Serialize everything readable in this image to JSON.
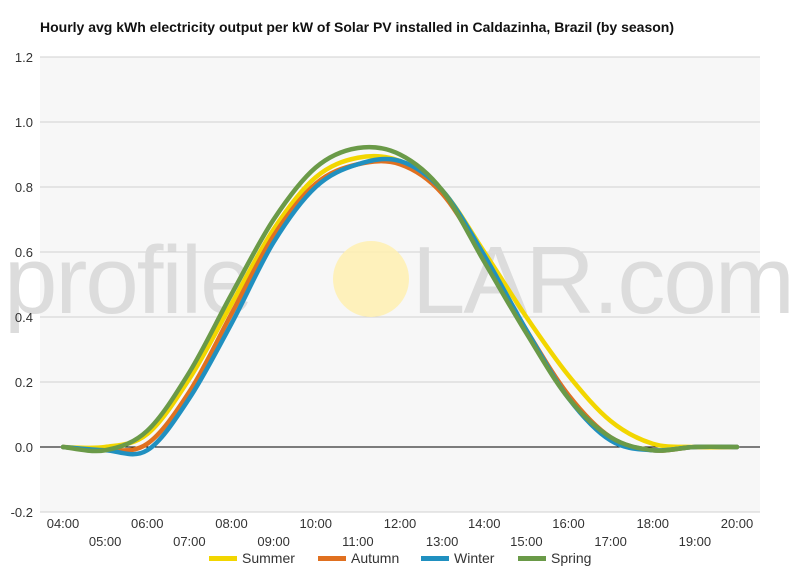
{
  "chart_data": {
    "type": "line",
    "title": "Hourly avg kWh electricity output per kW of Solar PV installed in Caldazinha, Brazil (by season)",
    "xlabel": "",
    "ylabel": "",
    "x": [
      "04:00",
      "05:00",
      "06:00",
      "07:00",
      "08:00",
      "09:00",
      "10:00",
      "11:00",
      "12:00",
      "13:00",
      "14:00",
      "15:00",
      "16:00",
      "17:00",
      "18:00",
      "19:00",
      "20:00"
    ],
    "ylim": [
      -0.2,
      1.2
    ],
    "yticks": [
      "-0.2",
      "0.0",
      "0.2",
      "0.4",
      "0.6",
      "0.8",
      "1.0",
      "1.2"
    ],
    "grid": true,
    "legend": "bottom",
    "series": [
      {
        "name": "Summer",
        "color": "#f2d600",
        "values": [
          0,
          0,
          0.04,
          0.21,
          0.44,
          0.67,
          0.83,
          0.89,
          0.88,
          0.79,
          0.6,
          0.4,
          0.22,
          0.08,
          0.01,
          0,
          0
        ]
      },
      {
        "name": "Autumn",
        "color": "#e07020",
        "values": [
          0,
          -0.01,
          0.01,
          0.17,
          0.41,
          0.65,
          0.81,
          0.87,
          0.87,
          0.78,
          0.58,
          0.36,
          0.16,
          0.03,
          -0.01,
          0,
          0
        ]
      },
      {
        "name": "Winter",
        "color": "#2090c0",
        "values": [
          0,
          -0.01,
          -0.01,
          0.15,
          0.38,
          0.63,
          0.8,
          0.87,
          0.88,
          0.79,
          0.59,
          0.36,
          0.15,
          0.02,
          -0.01,
          0,
          0
        ]
      },
      {
        "name": "Spring",
        "color": "#6a9a48",
        "values": [
          0,
          -0.01,
          0.05,
          0.23,
          0.47,
          0.7,
          0.86,
          0.92,
          0.9,
          0.79,
          0.57,
          0.35,
          0.15,
          0.03,
          -0.01,
          0,
          0
        ]
      }
    ]
  },
  "watermark": {
    "left": "profile",
    "right": "LAR.com",
    "sun_color": "#fff0b0"
  }
}
